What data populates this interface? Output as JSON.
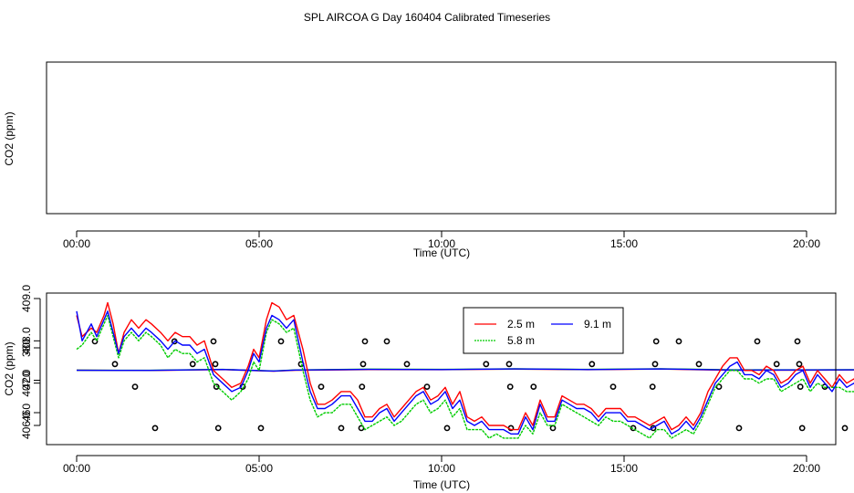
{
  "figure": {
    "title": "SPL AIRCOA G  Day 160404  Calibrated Timeseries"
  },
  "chart_data": [
    {
      "type": "scatter",
      "xlabel": "Time (UTC)",
      "ylabel": "CO2 (ppm)",
      "xlim": [
        0,
        24
      ],
      "ylim": [
        370,
        480
      ],
      "xticks": [
        {
          "v": 0,
          "label": "00:00"
        },
        {
          "v": 5,
          "label": "05:00"
        },
        {
          "v": 10,
          "label": "10:00"
        },
        {
          "v": 15,
          "label": "15:00"
        },
        {
          "v": 20,
          "label": "20:00"
        }
      ],
      "yticks": [
        {
          "v": 380,
          "label": "380"
        },
        {
          "v": 420,
          "label": "420"
        },
        {
          "v": 460,
          "label": "460"
        }
      ],
      "calibration_points": {
        "marker": "open-circle",
        "color": "#000000",
        "x": [
          2.15,
          3.88,
          5.05,
          7.25,
          7.8,
          10.15,
          11.9,
          13.05,
          15.25,
          15.8,
          18.15,
          19.88,
          21.05,
          23.15,
          23.7,
          1.6,
          3.83,
          4.55,
          6.7,
          7.82,
          9.6,
          11.88,
          12.52,
          14.7,
          15.78,
          17.6,
          19.83,
          20.5,
          22.65,
          23.75,
          1.05,
          3.18,
          3.8,
          6.15,
          7.85,
          9.05,
          11.22,
          11.85,
          14.12,
          15.85,
          17.05,
          19.18,
          19.8,
          22.12,
          23.78,
          0.5,
          2.68,
          3.75,
          5.6,
          7.9,
          8.5,
          10.68,
          11.8,
          13.6,
          15.88,
          16.5,
          18.65,
          19.75,
          21.6,
          23.8
        ],
        "y": [
          479,
          479,
          479,
          479,
          479,
          479,
          479,
          479,
          479,
          479,
          479,
          479,
          479,
          479,
          479,
          428,
          428,
          428,
          428,
          428,
          428,
          428,
          428,
          428,
          428,
          428,
          428,
          428,
          428,
          428,
          400,
          400,
          400,
          400,
          400,
          400,
          400,
          400,
          400,
          400,
          400,
          400,
          400,
          400,
          400,
          372,
          372,
          372,
          372,
          372,
          372,
          372,
          372,
          372,
          372,
          372,
          372,
          372,
          372,
          372
        ]
      },
      "series": [
        {
          "color": "#ff0000",
          "x": [
            0,
            2,
            4,
            5.4,
            6,
            8,
            10,
            12,
            14,
            16,
            18,
            20,
            22,
            24
          ],
          "y": [
            407.6,
            407.9,
            406.8,
            408.8,
            407.6,
            406.8,
            406.9,
            406.2,
            406.9,
            406.1,
            407.7,
            407.5,
            407.1,
            406.7
          ]
        },
        {
          "color": "#00cc00",
          "x": [
            0,
            2,
            4,
            5.4,
            6,
            8,
            10,
            12,
            14,
            16,
            18,
            20,
            22,
            24
          ],
          "y": [
            407.6,
            407.7,
            406.6,
            408.5,
            407.3,
            406.3,
            406.6,
            405.9,
            406.6,
            405.8,
            407.2,
            407.1,
            406.9,
            406.6
          ]
        },
        {
          "color": "#0000ff",
          "x": [
            0,
            2,
            4,
            5.4,
            6,
            8,
            10,
            12,
            14,
            16,
            18,
            20,
            22,
            24
          ],
          "y": [
            407.7,
            407.8,
            406.7,
            408.6,
            407.4,
            406.6,
            406.8,
            406.0,
            406.8,
            406.0,
            407.4,
            407.3,
            407.0,
            406.7
          ]
        }
      ]
    },
    {
      "type": "line",
      "xlabel": "Time (UTC)",
      "ylabel": "CO2 (ppm)",
      "xlim": [
        0,
        24
      ],
      "ylim": [
        405.7,
        409.1
      ],
      "xticks": [
        {
          "v": 0,
          "label": "00:00"
        },
        {
          "v": 5,
          "label": "05:00"
        },
        {
          "v": 10,
          "label": "10:00"
        },
        {
          "v": 15,
          "label": "15:00"
        },
        {
          "v": 20,
          "label": "20:00"
        }
      ],
      "yticks": [
        {
          "v": 406,
          "label": "406.0"
        },
        {
          "v": 407,
          "label": "407.0"
        },
        {
          "v": 408,
          "label": "408.0"
        },
        {
          "v": 409,
          "label": "409.0"
        }
      ],
      "legend_position": "top-center",
      "series": [
        {
          "name": "2.5 m",
          "color": "#ff0000",
          "x": [
            0,
            0.15,
            0.4,
            0.55,
            0.75,
            0.85,
            1.0,
            1.15,
            1.3,
            1.5,
            1.7,
            1.9,
            2.05,
            2.3,
            2.5,
            2.7,
            2.9,
            3.1,
            3.3,
            3.5,
            3.75,
            4.0,
            4.25,
            4.5,
            4.7,
            4.85,
            5.0,
            5.2,
            5.35,
            5.55,
            5.75,
            5.95,
            6.2,
            6.4,
            6.6,
            6.8,
            7.0,
            7.25,
            7.5,
            7.7,
            7.9,
            8.1,
            8.3,
            8.5,
            8.7,
            8.9,
            9.1,
            9.3,
            9.5,
            9.7,
            9.9,
            10.1,
            10.3,
            10.5,
            10.7,
            10.9,
            11.1,
            11.3,
            11.5,
            11.7,
            11.9,
            12.1,
            12.3,
            12.5,
            12.7,
            12.9,
            13.1,
            13.3,
            13.5,
            13.7,
            13.9,
            14.1,
            14.3,
            14.5,
            14.7,
            14.9,
            15.1,
            15.3,
            15.5,
            15.7,
            15.9,
            16.1,
            16.3,
            16.5,
            16.7,
            16.9,
            17.1,
            17.3,
            17.5,
            17.7,
            17.9,
            18.1,
            18.3,
            18.5,
            18.7,
            18.9,
            19.1,
            19.3,
            19.5,
            19.7,
            19.9,
            20.1,
            20.3,
            20.5,
            20.7,
            20.9,
            21.1,
            21.3,
            21.5,
            21.7,
            21.9,
            22.1,
            22.3,
            22.5,
            22.7,
            22.9,
            23.1,
            23.3,
            23.5,
            23.7
          ],
          "y": [
            408.6,
            408.1,
            408.3,
            408.2,
            408.6,
            408.9,
            408.4,
            407.7,
            408.2,
            408.5,
            408.3,
            408.5,
            408.4,
            408.2,
            408.0,
            408.2,
            408.1,
            408.1,
            407.9,
            408.0,
            407.3,
            407.1,
            406.9,
            407.0,
            407.4,
            407.8,
            407.6,
            408.5,
            408.9,
            408.8,
            408.5,
            408.6,
            407.8,
            407.0,
            406.5,
            406.5,
            406.6,
            406.8,
            406.8,
            406.6,
            406.2,
            406.2,
            406.4,
            406.5,
            406.2,
            406.4,
            406.6,
            406.8,
            406.9,
            406.6,
            406.7,
            406.9,
            406.5,
            406.8,
            406.2,
            406.1,
            406.2,
            406.0,
            406.0,
            406.0,
            405.9,
            405.9,
            406.3,
            406.0,
            406.6,
            406.2,
            406.2,
            406.7,
            406.6,
            406.5,
            406.5,
            406.4,
            406.2,
            406.4,
            406.4,
            406.4,
            406.2,
            406.2,
            406.1,
            406.0,
            406.1,
            406.2,
            405.9,
            406.0,
            406.2,
            406.0,
            406.3,
            406.8,
            407.1,
            407.4,
            407.6,
            407.6,
            407.3,
            407.3,
            407.2,
            407.4,
            407.3,
            407.0,
            407.1,
            407.3,
            407.4,
            407.0,
            407.3,
            407.1,
            406.9,
            407.2,
            407.0,
            407.1,
            406.8,
            407.1,
            406.9,
            407.0,
            406.9,
            406.6,
            406.9,
            406.6,
            406.8,
            406.5,
            406.8,
            406.5
          ]
        },
        {
          "name": "5.8 m",
          "color": "#00cc00",
          "x": [
            0,
            0.15,
            0.4,
            0.55,
            0.75,
            0.85,
            1.0,
            1.15,
            1.3,
            1.5,
            1.7,
            1.9,
            2.05,
            2.3,
            2.5,
            2.7,
            2.9,
            3.1,
            3.3,
            3.5,
            3.75,
            4.0,
            4.25,
            4.5,
            4.7,
            4.85,
            5.0,
            5.2,
            5.35,
            5.55,
            5.75,
            5.95,
            6.2,
            6.4,
            6.6,
            6.8,
            7.0,
            7.25,
            7.5,
            7.7,
            7.9,
            8.1,
            8.3,
            8.5,
            8.7,
            8.9,
            9.1,
            9.3,
            9.5,
            9.7,
            9.9,
            10.1,
            10.3,
            10.5,
            10.7,
            10.9,
            11.1,
            11.3,
            11.5,
            11.7,
            11.9,
            12.1,
            12.3,
            12.5,
            12.7,
            12.9,
            13.1,
            13.3,
            13.5,
            13.7,
            13.9,
            14.1,
            14.3,
            14.5,
            14.7,
            14.9,
            15.1,
            15.3,
            15.5,
            15.7,
            15.9,
            16.1,
            16.3,
            16.5,
            16.7,
            16.9,
            17.1,
            17.3,
            17.5,
            17.7,
            17.9,
            18.1,
            18.3,
            18.5,
            18.7,
            18.9,
            19.1,
            19.3,
            19.5,
            19.7,
            19.9,
            20.1,
            20.3,
            20.5,
            20.7,
            20.9,
            21.1,
            21.3,
            21.5,
            21.7,
            21.9,
            22.1,
            22.3,
            22.5,
            22.7,
            22.9,
            23.1,
            23.3,
            23.5,
            23.7
          ],
          "y": [
            407.8,
            407.9,
            408.2,
            408.0,
            408.4,
            408.6,
            408.1,
            407.6,
            408.0,
            408.2,
            408.0,
            408.2,
            408.1,
            407.9,
            407.6,
            407.8,
            407.7,
            407.7,
            407.5,
            407.6,
            407.0,
            406.8,
            406.6,
            406.8,
            407.1,
            407.5,
            407.3,
            408.2,
            408.5,
            408.4,
            408.2,
            408.3,
            407.3,
            406.6,
            406.2,
            406.3,
            406.3,
            406.5,
            406.5,
            406.2,
            405.9,
            406.0,
            406.1,
            406.2,
            406.0,
            406.1,
            406.3,
            406.5,
            406.6,
            406.3,
            406.4,
            406.6,
            406.2,
            406.4,
            405.9,
            405.9,
            405.9,
            405.7,
            405.8,
            405.7,
            405.7,
            405.7,
            406.0,
            405.8,
            406.3,
            406.0,
            406.0,
            406.5,
            406.4,
            406.3,
            406.2,
            406.1,
            406.0,
            406.2,
            406.1,
            406.1,
            406.0,
            405.9,
            405.8,
            405.7,
            405.9,
            405.9,
            405.7,
            405.8,
            405.9,
            405.8,
            406.1,
            406.5,
            406.9,
            407.1,
            407.3,
            407.3,
            407.1,
            407.1,
            407.0,
            407.1,
            407.1,
            406.8,
            406.9,
            407.0,
            407.1,
            406.8,
            407.0,
            406.9,
            406.9,
            406.9,
            406.8,
            406.8,
            406.7,
            406.8,
            406.6,
            406.7,
            406.6,
            406.4,
            406.6,
            406.4,
            406.6,
            406.4,
            406.6,
            406.5
          ]
        },
        {
          "name": "9.1 m",
          "color": "#0000ff",
          "x": [
            0,
            0.15,
            0.4,
            0.55,
            0.75,
            0.85,
            1.0,
            1.15,
            1.3,
            1.5,
            1.7,
            1.9,
            2.05,
            2.3,
            2.5,
            2.7,
            2.9,
            3.1,
            3.3,
            3.5,
            3.75,
            4.0,
            4.25,
            4.5,
            4.7,
            4.85,
            5.0,
            5.2,
            5.35,
            5.55,
            5.75,
            5.95,
            6.2,
            6.4,
            6.6,
            6.8,
            7.0,
            7.25,
            7.5,
            7.7,
            7.9,
            8.1,
            8.3,
            8.5,
            8.7,
            8.9,
            9.1,
            9.3,
            9.5,
            9.7,
            9.9,
            10.1,
            10.3,
            10.5,
            10.7,
            10.9,
            11.1,
            11.3,
            11.5,
            11.7,
            11.9,
            12.1,
            12.3,
            12.5,
            12.7,
            12.9,
            13.1,
            13.3,
            13.5,
            13.7,
            13.9,
            14.1,
            14.3,
            14.5,
            14.7,
            14.9,
            15.1,
            15.3,
            15.5,
            15.7,
            15.9,
            16.1,
            16.3,
            16.5,
            16.7,
            16.9,
            17.1,
            17.3,
            17.5,
            17.7,
            17.9,
            18.1,
            18.3,
            18.5,
            18.7,
            18.9,
            19.1,
            19.3,
            19.5,
            19.7,
            19.9,
            20.1,
            20.3,
            20.5,
            20.7,
            20.9,
            21.1,
            21.3,
            21.5,
            21.7,
            21.9,
            22.1,
            22.3,
            22.5,
            22.7,
            22.9,
            23.1,
            23.3,
            23.5,
            23.7,
            23.95
          ],
          "y": [
            408.7,
            408.0,
            408.4,
            408.1,
            408.5,
            408.7,
            408.2,
            407.7,
            408.1,
            408.3,
            408.1,
            408.3,
            408.2,
            408.0,
            407.8,
            408.0,
            407.9,
            407.9,
            407.7,
            407.8,
            407.2,
            407.0,
            406.8,
            406.9,
            407.3,
            407.7,
            407.5,
            408.3,
            408.6,
            408.5,
            408.3,
            408.5,
            407.5,
            406.8,
            406.4,
            406.4,
            406.5,
            406.7,
            406.7,
            406.4,
            406.1,
            406.1,
            406.3,
            406.4,
            406.1,
            406.3,
            406.5,
            406.7,
            406.8,
            406.5,
            406.6,
            406.8,
            406.4,
            406.6,
            406.1,
            406.0,
            406.1,
            405.9,
            405.9,
            405.9,
            405.8,
            405.8,
            406.2,
            405.9,
            406.5,
            406.1,
            406.1,
            406.6,
            406.5,
            406.4,
            406.4,
            406.3,
            406.1,
            406.3,
            406.3,
            406.3,
            406.1,
            406.1,
            406.0,
            405.9,
            406.0,
            406.1,
            405.8,
            405.9,
            406.1,
            405.9,
            406.2,
            406.6,
            407.0,
            407.2,
            407.4,
            407.5,
            407.2,
            407.2,
            407.1,
            407.3,
            407.2,
            406.9,
            407.0,
            407.2,
            407.3,
            406.9,
            407.2,
            407.0,
            406.8,
            407.1,
            406.9,
            407.0,
            406.7,
            407.0,
            406.8,
            406.9,
            406.8,
            406.5,
            406.8,
            406.5,
            406.7,
            406.4,
            406.7,
            406.5,
            406.6
          ]
        }
      ]
    }
  ]
}
